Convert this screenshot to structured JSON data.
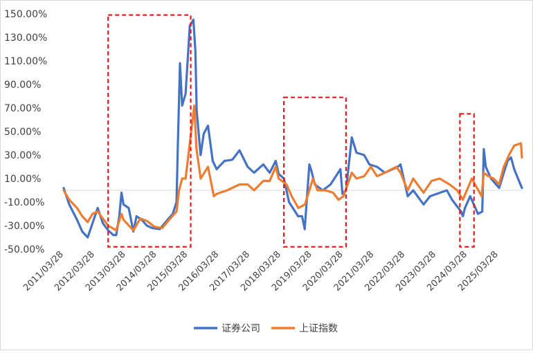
{
  "chart_data": {
    "type": "line",
    "title": "",
    "xlabel": "",
    "ylabel": "",
    "ylim": [
      -50,
      150
    ],
    "y_ticks": [
      "150.00%",
      "130.00%",
      "110.00%",
      "90.00%",
      "70.00%",
      "50.00%",
      "30.00%",
      "10.00%",
      "-10.00%",
      "-30.00%",
      "-50.00%"
    ],
    "x_ticks": [
      "2011/03/28",
      "2012/03/28",
      "2013/03/28",
      "2014/03/28",
      "2015/03/28",
      "2016/03/28",
      "2017/03/28",
      "2018/03/28",
      "2019/03/28",
      "2020/03/28",
      "2021/03/28",
      "2022/03/28",
      "2023/03/28",
      "2024/03/28",
      "2025/03/28"
    ],
    "x_range": [
      "2011/03/28",
      "2025/12/31"
    ],
    "grid": false,
    "legend_position": "bottom",
    "highlight_boxes": [
      {
        "x_start": "2012/09/01",
        "x_end": "2015/05/01",
        "y_low": -48,
        "y_high": 149
      },
      {
        "x_start": "2018/05/01",
        "x_end": "2020/05/01",
        "y_low": -48,
        "y_high": 79
      },
      {
        "x_start": "2024/01/01",
        "x_end": "2024/06/15",
        "y_low": -48,
        "y_high": 65
      }
    ],
    "series": [
      {
        "name": "证券公司",
        "color": "#4472C4",
        "points": [
          [
            "2011/03/28",
            2
          ],
          [
            "2011/06/01",
            -12
          ],
          [
            "2011/09/01",
            -25
          ],
          [
            "2011/11/01",
            -35
          ],
          [
            "2012/01/05",
            -40
          ],
          [
            "2012/03/01",
            -28
          ],
          [
            "2012/05/01",
            -15
          ],
          [
            "2012/07/01",
            -28
          ],
          [
            "2012/09/01",
            -34
          ],
          [
            "2012/11/01",
            -38
          ],
          [
            "2012/12/05",
            -38
          ],
          [
            "2013/01/10",
            -22
          ],
          [
            "2013/02/05",
            -2
          ],
          [
            "2013/03/01",
            -12
          ],
          [
            "2013/05/01",
            -15
          ],
          [
            "2013/06/25",
            -35
          ],
          [
            "2013/08/01",
            -22
          ],
          [
            "2013/10/01",
            -25
          ],
          [
            "2013/12/01",
            -30
          ],
          [
            "2014/02/01",
            -32
          ],
          [
            "2014/05/01",
            -33
          ],
          [
            "2014/08/01",
            -25
          ],
          [
            "2014/10/01",
            -20
          ],
          [
            "2014/11/15",
            -10
          ],
          [
            "2014/12/01",
            40
          ],
          [
            "2014/12/25",
            108
          ],
          [
            "2015/01/20",
            72
          ],
          [
            "2015/03/01",
            82
          ],
          [
            "2015/04/20",
            140
          ],
          [
            "2015/06/01",
            145
          ],
          [
            "2015/06/25",
            118
          ],
          [
            "2015/07/10",
            68
          ],
          [
            "2015/08/25",
            30
          ],
          [
            "2015/10/01",
            48
          ],
          [
            "2015/11/20",
            55
          ],
          [
            "2016/01/15",
            25
          ],
          [
            "2016/03/01",
            18
          ],
          [
            "2016/06/01",
            25
          ],
          [
            "2016/09/01",
            26
          ],
          [
            "2016/11/25",
            34
          ],
          [
            "2017/03/01",
            20
          ],
          [
            "2017/05/15",
            15
          ],
          [
            "2017/09/01",
            22
          ],
          [
            "2017/11/15",
            15
          ],
          [
            "2018/01/25",
            25
          ],
          [
            "2018/03/01",
            14
          ],
          [
            "2018/05/01",
            10
          ],
          [
            "2018/07/01",
            -10
          ],
          [
            "2018/10/15",
            -22
          ],
          [
            "2018/12/01",
            -22
          ],
          [
            "2019/01/01",
            -33
          ],
          [
            "2019/02/25",
            22
          ],
          [
            "2019/03/15",
            18
          ],
          [
            "2019/05/01",
            5
          ],
          [
            "2019/08/01",
            0
          ],
          [
            "2019/11/01",
            5
          ],
          [
            "2020/02/25",
            18
          ],
          [
            "2020/03/20",
            -3
          ],
          [
            "2020/05/01",
            0
          ],
          [
            "2020/07/08",
            45
          ],
          [
            "2020/09/01",
            32
          ],
          [
            "2020/12/01",
            30
          ],
          [
            "2021/02/01",
            22
          ],
          [
            "2021/05/01",
            20
          ],
          [
            "2021/08/01",
            15
          ],
          [
            "2021/11/01",
            18
          ],
          [
            "2022/01/01",
            20
          ],
          [
            "2022/02/01",
            22
          ],
          [
            "2022/04/27",
            -5
          ],
          [
            "2022/07/01",
            0
          ],
          [
            "2022/10/31",
            -12
          ],
          [
            "2023/01/15",
            -5
          ],
          [
            "2023/07/31",
            0
          ],
          [
            "2023/10/01",
            -8
          ],
          [
            "2024/01/15",
            -18
          ],
          [
            "2024/02/05",
            -22
          ],
          [
            "2024/03/01",
            -15
          ],
          [
            "2024/05/01",
            -5
          ],
          [
            "2024/08/01",
            -20
          ],
          [
            "2024/09/20",
            -18
          ],
          [
            "2024/10/08",
            35
          ],
          [
            "2024/11/01",
            20
          ],
          [
            "2025/01/01",
            10
          ],
          [
            "2025/04/07",
            2
          ],
          [
            "2025/06/01",
            15
          ],
          [
            "2025/07/15",
            25
          ],
          [
            "2025/08/25",
            28
          ],
          [
            "2025/10/01",
            18
          ],
          [
            "2025/12/31",
            2
          ]
        ]
      },
      {
        "name": "上证指数",
        "color": "#ED7D31",
        "points": [
          [
            "2011/03/28",
            0
          ],
          [
            "2011/06/01",
            -8
          ],
          [
            "2011/09/01",
            -15
          ],
          [
            "2011/11/01",
            -22
          ],
          [
            "2012/01/05",
            -27
          ],
          [
            "2012/03/01",
            -20
          ],
          [
            "2012/05/01",
            -18
          ],
          [
            "2012/07/01",
            -24
          ],
          [
            "2012/09/01",
            -30
          ],
          [
            "2012/12/04",
            -34
          ],
          [
            "2013/02/05",
            -20
          ],
          [
            "2013/03/01",
            -25
          ],
          [
            "2013/06/25",
            -34
          ],
          [
            "2013/09/15",
            -24
          ],
          [
            "2013/12/01",
            -26
          ],
          [
            "2014/03/01",
            -31
          ],
          [
            "2014/06/01",
            -32
          ],
          [
            "2014/09/01",
            -24
          ],
          [
            "2014/11/15",
            -18
          ],
          [
            "2014/12/15",
            0
          ],
          [
            "2015/01/20",
            10
          ],
          [
            "2015/03/01",
            10
          ],
          [
            "2015/04/20",
            40
          ],
          [
            "2015/06/12",
            72
          ],
          [
            "2015/07/08",
            35
          ],
          [
            "2015/08/26",
            10
          ],
          [
            "2015/11/20",
            20
          ],
          [
            "2016/01/28",
            -5
          ],
          [
            "2016/03/01",
            -3
          ],
          [
            "2016/07/01",
            0
          ],
          [
            "2016/11/25",
            5
          ],
          [
            "2017/03/01",
            5
          ],
          [
            "2017/05/15",
            0
          ],
          [
            "2017/09/01",
            8
          ],
          [
            "2017/11/15",
            8
          ],
          [
            "2018/01/25",
            20
          ],
          [
            "2018/03/01",
            10
          ],
          [
            "2018/06/01",
            5
          ],
          [
            "2018/08/01",
            -5
          ],
          [
            "2018/10/18",
            -15
          ],
          [
            "2019/01/04",
            -12
          ],
          [
            "2019/04/08",
            10
          ],
          [
            "2019/06/01",
            0
          ],
          [
            "2019/09/01",
            0
          ],
          [
            "2019/12/01",
            -2
          ],
          [
            "2020/02/03",
            -8
          ],
          [
            "2020/04/01",
            -5
          ],
          [
            "2020/07/09",
            15
          ],
          [
            "2020/09/01",
            10
          ],
          [
            "2020/12/01",
            12
          ],
          [
            "2021/02/18",
            20
          ],
          [
            "2021/05/01",
            12
          ],
          [
            "2021/08/01",
            15
          ],
          [
            "2021/12/13",
            20
          ],
          [
            "2022/02/01",
            15
          ],
          [
            "2022/04/27",
            0
          ],
          [
            "2022/07/01",
            10
          ],
          [
            "2022/10/31",
            -2
          ],
          [
            "2023/02/01",
            8
          ],
          [
            "2023/05/08",
            10
          ],
          [
            "2023/09/01",
            5
          ],
          [
            "2023/12/01",
            0
          ],
          [
            "2024/02/05",
            -8
          ],
          [
            "2024/05/20",
            10
          ],
          [
            "2024/09/13",
            -5
          ],
          [
            "2024/10/08",
            15
          ],
          [
            "2024/12/01",
            12
          ],
          [
            "2025/02/01",
            10
          ],
          [
            "2025/04/07",
            5
          ],
          [
            "2025/06/01",
            20
          ],
          [
            "2025/08/01",
            30
          ],
          [
            "2025/10/01",
            38
          ],
          [
            "2025/12/20",
            40
          ],
          [
            "2025/12/31",
            28
          ]
        ]
      }
    ]
  }
}
